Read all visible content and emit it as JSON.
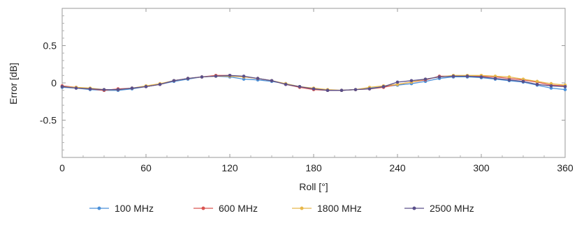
{
  "chart_data": {
    "type": "line",
    "title": "",
    "xlabel": "Roll [°]",
    "ylabel": "Error [dB]",
    "xlim": [
      0,
      360
    ],
    "ylim": [
      -1.0,
      1.0
    ],
    "xticks": [
      0,
      60,
      120,
      180,
      240,
      300,
      360
    ],
    "xtick_labels": [
      "0",
      "60",
      "120",
      "180",
      "240",
      "300",
      "360"
    ],
    "yticks": [
      0.5,
      0,
      -0.5
    ],
    "ytick_labels": [
      "0.5",
      "0",
      "-0.5"
    ],
    "grid": false,
    "legend_position": "bottom",
    "x": [
      0,
      10,
      20,
      30,
      40,
      50,
      60,
      70,
      80,
      90,
      100,
      110,
      120,
      130,
      140,
      150,
      160,
      170,
      180,
      190,
      200,
      210,
      220,
      230,
      240,
      250,
      260,
      270,
      280,
      290,
      300,
      310,
      320,
      330,
      340,
      350,
      360
    ],
    "series": [
      {
        "name": "100 MHz",
        "color": "#4a90d9",
        "values": [
          -0.06,
          -0.07,
          -0.09,
          -0.1,
          -0.1,
          -0.08,
          -0.05,
          -0.02,
          0.02,
          0.05,
          0.08,
          0.09,
          0.08,
          0.05,
          0.04,
          0.02,
          -0.01,
          -0.05,
          -0.08,
          -0.1,
          -0.1,
          -0.09,
          -0.07,
          -0.05,
          -0.03,
          -0.01,
          0.02,
          0.06,
          0.08,
          0.08,
          0.07,
          0.05,
          0.03,
          0.01,
          -0.03,
          -0.07,
          -0.09
        ]
      },
      {
        "name": "600 MHz",
        "color": "#d9534f",
        "values": [
          -0.04,
          -0.06,
          -0.08,
          -0.1,
          -0.08,
          -0.07,
          -0.05,
          -0.02,
          0.03,
          0.06,
          0.08,
          0.1,
          0.1,
          0.08,
          0.06,
          0.03,
          -0.02,
          -0.06,
          -0.09,
          -0.1,
          -0.1,
          -0.09,
          -0.08,
          -0.06,
          -0.02,
          0.01,
          0.04,
          0.09,
          0.09,
          0.09,
          0.09,
          0.08,
          0.06,
          0.04,
          0.01,
          -0.03,
          -0.04
        ]
      },
      {
        "name": "1800 MHz",
        "color": "#e8b84a",
        "values": [
          -0.05,
          -0.06,
          -0.07,
          -0.09,
          -0.09,
          -0.07,
          -0.04,
          -0.01,
          0.03,
          0.06,
          0.08,
          0.09,
          0.09,
          0.08,
          0.06,
          0.03,
          -0.01,
          -0.05,
          -0.07,
          -0.09,
          -0.1,
          -0.09,
          -0.06,
          -0.04,
          -0.02,
          0.01,
          0.05,
          0.08,
          0.1,
          0.1,
          0.1,
          0.09,
          0.08,
          0.05,
          0.02,
          -0.01,
          -0.03
        ]
      },
      {
        "name": "2500 MHz",
        "color": "#5a4f8a",
        "values": [
          -0.05,
          -0.07,
          -0.08,
          -0.09,
          -0.09,
          -0.07,
          -0.05,
          -0.02,
          0.03,
          0.06,
          0.08,
          0.09,
          0.1,
          0.09,
          0.06,
          0.03,
          -0.02,
          -0.05,
          -0.08,
          -0.1,
          -0.1,
          -0.09,
          -0.08,
          -0.05,
          0.01,
          0.03,
          0.05,
          0.08,
          0.09,
          0.09,
          0.08,
          0.06,
          0.04,
          0.02,
          -0.02,
          -0.04,
          -0.05
        ]
      }
    ]
  }
}
